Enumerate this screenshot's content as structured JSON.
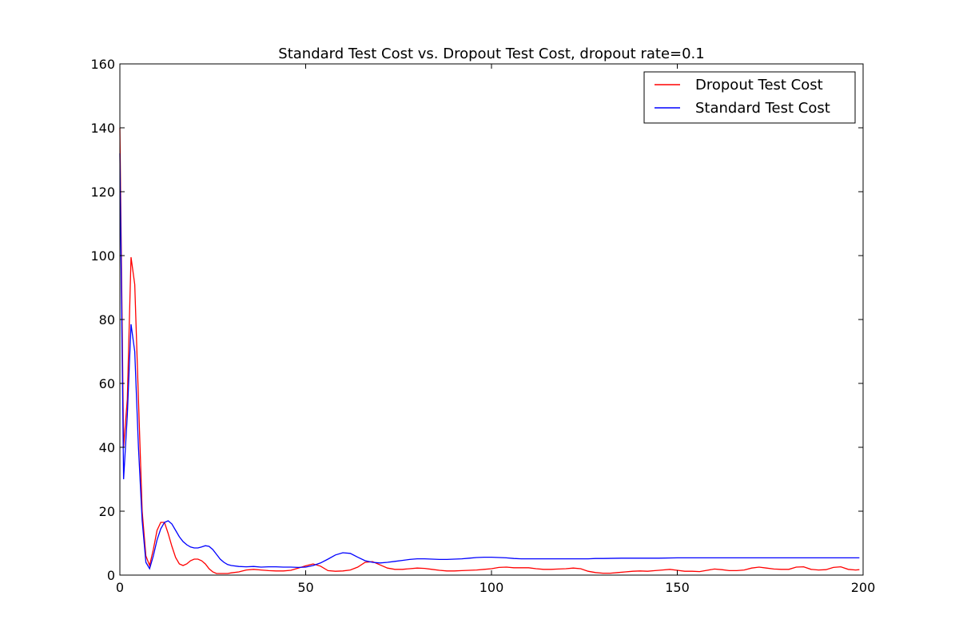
{
  "chart_data": {
    "type": "line",
    "title": "Standard Test Cost vs. Dropout Test Cost, dropout rate=0.1",
    "xlabel": "",
    "ylabel": "",
    "xlim": [
      0,
      200
    ],
    "ylim": [
      0,
      160
    ],
    "xticks": [
      0,
      50,
      100,
      150,
      200
    ],
    "yticks": [
      0,
      20,
      40,
      60,
      80,
      100,
      120,
      140,
      160
    ],
    "grid": false,
    "legend_position": "top-right",
    "series": [
      {
        "name": "Dropout Test Cost",
        "color": "#ff0000",
        "x": [
          0,
          1,
          2,
          3,
          4,
          5,
          6,
          7,
          8,
          9,
          10,
          11,
          12,
          13,
          14,
          15,
          16,
          17,
          18,
          19,
          20,
          21,
          22,
          23,
          24,
          25,
          26,
          27,
          28,
          29,
          30,
          32,
          34,
          36,
          38,
          40,
          42,
          44,
          46,
          48,
          50,
          52,
          54,
          56,
          58,
          60,
          62,
          64,
          66,
          68,
          70,
          72,
          74,
          76,
          78,
          80,
          82,
          84,
          86,
          88,
          90,
          92,
          94,
          96,
          98,
          100,
          102,
          104,
          106,
          108,
          110,
          112,
          114,
          116,
          118,
          120,
          122,
          124,
          126,
          128,
          130,
          132,
          134,
          136,
          138,
          140,
          142,
          144,
          146,
          148,
          150,
          152,
          154,
          156,
          158,
          160,
          162,
          164,
          166,
          168,
          170,
          172,
          174,
          176,
          178,
          180,
          182,
          184,
          186,
          188,
          190,
          192,
          194,
          196,
          198,
          199
        ],
        "values": [
          140,
          40,
          55,
          99.5,
          91,
          55,
          20,
          6,
          3,
          8,
          14,
          16.5,
          16.5,
          13,
          9,
          5.5,
          3.5,
          3,
          3.5,
          4.5,
          5,
          5,
          4.5,
          3.5,
          2,
          1,
          0.5,
          0.5,
          0.5,
          0.5,
          0.7,
          1,
          1.6,
          1.8,
          1.6,
          1.4,
          1.3,
          1.3,
          1.5,
          2.2,
          2.9,
          3.5,
          2.8,
          1.4,
          1.2,
          1.3,
          1.6,
          2.5,
          4,
          4.2,
          3.2,
          2.2,
          1.8,
          1.8,
          2,
          2.2,
          2.1,
          1.8,
          1.5,
          1.3,
          1.3,
          1.4,
          1.5,
          1.6,
          1.8,
          2,
          2.4,
          2.5,
          2.3,
          2.3,
          2.3,
          2,
          1.8,
          1.8,
          1.9,
          2,
          2.2,
          2,
          1.2,
          0.8,
          0.6,
          0.6,
          0.8,
          1,
          1.2,
          1.3,
          1.2,
          1.4,
          1.6,
          1.8,
          1.5,
          1.2,
          1.2,
          1.1,
          1.5,
          1.9,
          1.7,
          1.4,
          1.4,
          1.6,
          2.2,
          2.5,
          2.2,
          1.9,
          1.8,
          1.8,
          2.5,
          2.6,
          1.8,
          1.6,
          1.7,
          2.4,
          2.6,
          1.8,
          1.6,
          1.7
        ]
      },
      {
        "name": "Standard Test Cost",
        "color": "#0000ff",
        "x": [
          0,
          1,
          2,
          3,
          4,
          5,
          6,
          7,
          8,
          9,
          10,
          11,
          12,
          13,
          14,
          15,
          16,
          17,
          18,
          19,
          20,
          21,
          22,
          23,
          24,
          25,
          26,
          27,
          28,
          29,
          30,
          32,
          34,
          36,
          38,
          40,
          42,
          44,
          46,
          48,
          50,
          52,
          54,
          56,
          58,
          60,
          62,
          64,
          66,
          68,
          70,
          72,
          74,
          76,
          78,
          80,
          82,
          84,
          86,
          88,
          90,
          92,
          94,
          96,
          98,
          100,
          102,
          104,
          106,
          108,
          110,
          112,
          114,
          116,
          118,
          120,
          122,
          124,
          126,
          128,
          130,
          135,
          140,
          145,
          150,
          155,
          160,
          165,
          170,
          175,
          180,
          185,
          190,
          195,
          199
        ],
        "values": [
          132,
          30,
          50,
          78.5,
          70,
          40,
          17,
          4,
          2,
          6,
          11,
          14.5,
          16.5,
          17,
          16,
          14,
          12,
          10.5,
          9.5,
          8.8,
          8.5,
          8.5,
          8.8,
          9.2,
          9,
          8,
          6.5,
          5,
          4,
          3.3,
          3,
          2.7,
          2.6,
          2.7,
          2.5,
          2.6,
          2.6,
          2.5,
          2.5,
          2.4,
          2.5,
          3,
          3.8,
          5,
          6.3,
          7,
          6.8,
          5.6,
          4.5,
          4,
          3.8,
          4,
          4.3,
          4.6,
          4.9,
          5.1,
          5.1,
          5,
          4.9,
          4.9,
          5,
          5.1,
          5.3,
          5.5,
          5.6,
          5.6,
          5.5,
          5.4,
          5.2,
          5.1,
          5.1,
          5.1,
          5.1,
          5.1,
          5.1,
          5.1,
          5.1,
          5.1,
          5.1,
          5.2,
          5.2,
          5.3,
          5.3,
          5.3,
          5.4,
          5.4,
          5.4,
          5.4,
          5.4,
          5.4,
          5.4,
          5.4,
          5.4,
          5.4,
          5.4
        ]
      }
    ]
  }
}
